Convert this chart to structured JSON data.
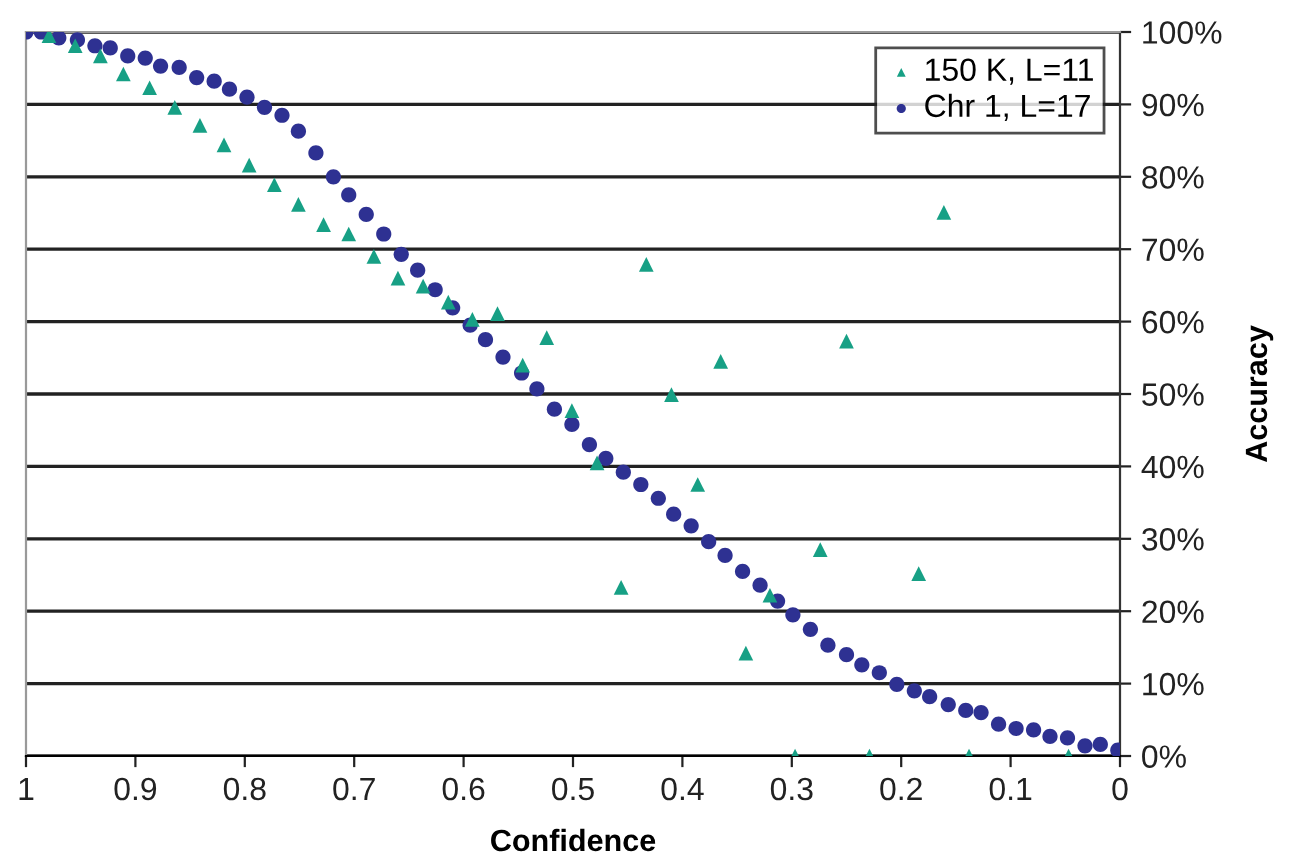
{
  "chart_data": {
    "type": "scatter",
    "xlabel": "Confidence",
    "ylabel": "Accuracy",
    "xlim": [
      1,
      0
    ],
    "xticks": [
      1,
      {
        "value": 0.9,
        "label": "0.9"
      },
      {
        "value": 0.8,
        "label": "0.8"
      },
      {
        "value": 0.7,
        "label": "0.7"
      },
      {
        "value": 0.6,
        "label": "0.6"
      },
      {
        "value": 0.5,
        "label": "0.5"
      },
      {
        "value": 0.4,
        "label": "0.4"
      },
      {
        "value": 0.3,
        "label": "0.3"
      },
      {
        "value": 0.2,
        "label": "0.2"
      },
      {
        "value": 0.1,
        "label": "0.1"
      },
      0
    ],
    "ylim": [
      0,
      100
    ],
    "yticks": [
      {
        "value": 0,
        "label": "0%"
      },
      {
        "value": 10,
        "label": "10%"
      },
      {
        "value": 20,
        "label": "20%"
      },
      {
        "value": 30,
        "label": "30%"
      },
      {
        "value": 40,
        "label": "40%"
      },
      {
        "value": 50,
        "label": "50%"
      },
      {
        "value": 60,
        "label": "60%"
      },
      {
        "value": 70,
        "label": "70%"
      },
      {
        "value": 80,
        "label": "80%"
      },
      {
        "value": 90,
        "label": "90%"
      },
      {
        "value": 100,
        "label": "100%"
      }
    ],
    "grid": "y",
    "legend": "top right",
    "series": [
      {
        "name": "150 K, L=11",
        "color": "#17a085",
        "marker": "triangle",
        "x": [
          0.979,
          0.955,
          0.932,
          0.911,
          0.887,
          0.864,
          0.841,
          0.819,
          0.796,
          0.773,
          0.751,
          0.728,
          0.705,
          0.682,
          0.66,
          0.637,
          0.614,
          0.592,
          0.569,
          0.546,
          0.524,
          0.501,
          0.478,
          0.456,
          0.433,
          0.41,
          0.386,
          0.365,
          0.342,
          0.32,
          0.297,
          0.274,
          0.25,
          0.229,
          0.184,
          0.161,
          0.138,
          0.047
        ],
        "values": [
          99.5,
          98.1,
          96.7,
          94.2,
          92.3,
          89.6,
          87.1,
          84.4,
          81.6,
          78.9,
          76.2,
          73.4,
          72.1,
          69.0,
          66.0,
          64.9,
          62.7,
          60.3,
          61.1,
          54.0,
          57.8,
          47.7,
          40.5,
          23.3,
          67.9,
          49.9,
          37.5,
          54.5,
          14.2,
          22.2,
          0,
          28.5,
          57.3,
          0,
          25.2,
          75.1,
          0,
          0
        ]
      },
      {
        "name": "Chr 1, L=17",
        "color": "#2e3192",
        "marker": "circle",
        "x": [
          1.0,
          0.986,
          0.97,
          0.953,
          0.937,
          0.923,
          0.907,
          0.891,
          0.877,
          0.86,
          0.844,
          0.828,
          0.814,
          0.798,
          0.782,
          0.766,
          0.751,
          0.735,
          0.719,
          0.705,
          0.689,
          0.673,
          0.657,
          0.642,
          0.626,
          0.61,
          0.594,
          0.58,
          0.564,
          0.547,
          0.533,
          0.517,
          0.501,
          0.485,
          0.47,
          0.454,
          0.438,
          0.422,
          0.408,
          0.392,
          0.376,
          0.361,
          0.345,
          0.329,
          0.313,
          0.299,
          0.283,
          0.267,
          0.25,
          0.236,
          0.22,
          0.204,
          0.188,
          0.174,
          0.157,
          0.141,
          0.127,
          0.111,
          0.095,
          0.079,
          0.064,
          0.048,
          0.032,
          0.018,
          0.002
        ],
        "values": [
          100,
          100,
          99.2,
          98.9,
          98.1,
          97.8,
          96.7,
          96.4,
          95.3,
          95.1,
          93.7,
          93.2,
          92.1,
          91.0,
          89.6,
          88.5,
          86.3,
          83.3,
          80.0,
          77.5,
          74.8,
          72.1,
          69.3,
          67.1,
          64.4,
          61.9,
          59.5,
          57.5,
          55.1,
          52.9,
          50.7,
          47.9,
          45.8,
          43.0,
          41.1,
          39.2,
          37.5,
          35.6,
          33.4,
          31.8,
          29.6,
          27.7,
          25.5,
          23.6,
          21.4,
          19.5,
          17.5,
          15.3,
          14.0,
          12.6,
          11.5,
          9.9,
          9.0,
          8.2,
          7.1,
          6.3,
          6.0,
          4.4,
          3.8,
          3.6,
          2.7,
          2.5,
          1.4,
          1.6,
          0.8
        ]
      }
    ]
  }
}
